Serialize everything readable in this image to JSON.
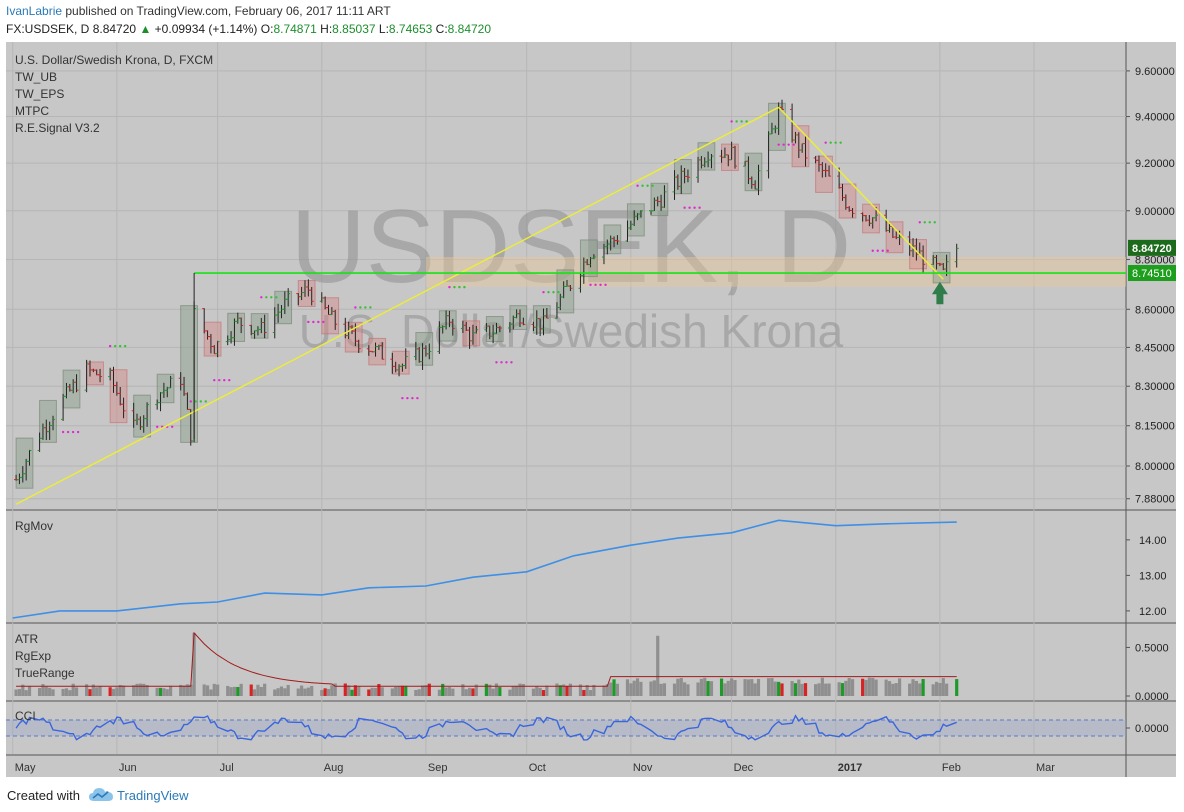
{
  "header": {
    "user": "IvanLabrie",
    "published": " published on TradingView.com, February 06, 2017 11:11 ART",
    "symbol": "FX:USDSEK, D",
    "last": "8.84720",
    "change": "+0.09934 (+1.14%)",
    "o_label": "O:",
    "o": "8.74871",
    "h_label": "H:",
    "h": "8.85037",
    "l_label": "L:",
    "l": "8.74653",
    "c_label": "C:",
    "c": "8.84720"
  },
  "legend": [
    "U.S. Dollar/Swedish Krona, D, FXCM",
    "TW_UB",
    "TW_EPS",
    "MTPC",
    "R.E.Signal V3.2"
  ],
  "watermark": {
    "line1": "USDSEK, D",
    "line2": "U.S. Dollar/Swedish Krona"
  },
  "footer": {
    "created": "Created with",
    "brand": "TradingView"
  },
  "colors": {
    "panel_bg": "#c7c7c7",
    "grid": "#b6b6b6",
    "up": "#1f9a2a",
    "down": "#d62424",
    "bar": "#222222",
    "trend": "#ecec3a",
    "support": "#16e316",
    "zone": "#e8c89a",
    "rgmov": "#3e8fe6",
    "cci": "#3a66dd",
    "atr": "#a31a1a",
    "dots_magenta": "#e02ad0",
    "dots_green": "#36c236",
    "last_badge": "#1c6b1c",
    "level_badge": "#1d9e1d",
    "arrow": "#2e7d4a"
  },
  "chart_data": [
    {
      "type": "candlestick",
      "title": "U.S. Dollar/Swedish Krona, D, FXCM",
      "ytick_labels": [
        "9.60000",
        "9.40000",
        "9.20000",
        "9.00000",
        "8.80000",
        "8.60000",
        "8.45000",
        "8.30000",
        "8.15000",
        "8.00000",
        "7.88000"
      ],
      "y_scale": "log",
      "ylim": [
        7.85,
        9.72
      ],
      "xtick_labels": [
        "May",
        "Jun",
        "Jul",
        "Aug",
        "Sep",
        "Oct",
        "Nov",
        "Dec",
        "2017",
        "Feb",
        "Mar"
      ],
      "last_price_label": "8.84720",
      "support_level": 8.7451,
      "support_label": "8.74510",
      "zone": [
        8.69,
        8.81
      ],
      "trendlines": [
        {
          "from": [
            "2016-05-02",
            7.86
          ],
          "to": [
            "2016-12-15",
            9.44
          ]
        },
        {
          "from": [
            "2016-12-15",
            9.44
          ],
          "to": [
            "2017-02-02",
            8.72
          ]
        }
      ],
      "close_path": [
        [
          "2016-05-02",
          7.95
        ],
        [
          "2016-05-09",
          8.12
        ],
        [
          "2016-05-16",
          8.25
        ],
        [
          "2016-05-23",
          8.36
        ],
        [
          "2016-05-30",
          8.33
        ],
        [
          "2016-06-06",
          8.14
        ],
        [
          "2016-06-13",
          8.27
        ],
        [
          "2016-06-20",
          8.33
        ],
        [
          "2016-06-23",
          8.12
        ],
        [
          "2016-06-24",
          8.58
        ],
        [
          "2016-06-30",
          8.45
        ],
        [
          "2016-07-07",
          8.55
        ],
        [
          "2016-07-14",
          8.52
        ],
        [
          "2016-07-21",
          8.62
        ],
        [
          "2016-07-28",
          8.68
        ],
        [
          "2016-08-04",
          8.56
        ],
        [
          "2016-08-11",
          8.48
        ],
        [
          "2016-08-18",
          8.43
        ],
        [
          "2016-08-25",
          8.38
        ],
        [
          "2016-09-01",
          8.44
        ],
        [
          "2016-09-08",
          8.56
        ],
        [
          "2016-09-15",
          8.49
        ],
        [
          "2016-09-22",
          8.52
        ],
        [
          "2016-09-29",
          8.58
        ],
        [
          "2016-10-06",
          8.54
        ],
        [
          "2016-10-13",
          8.68
        ],
        [
          "2016-10-20",
          8.83
        ],
        [
          "2016-10-27",
          8.88
        ],
        [
          "2016-11-03",
          8.97
        ],
        [
          "2016-11-10",
          9.05
        ],
        [
          "2016-11-17",
          9.15
        ],
        [
          "2016-11-24",
          9.25
        ],
        [
          "2016-12-01",
          9.24
        ],
        [
          "2016-12-08",
          9.12
        ],
        [
          "2016-12-15",
          9.42
        ],
        [
          "2016-12-22",
          9.25
        ],
        [
          "2016-12-29",
          9.15
        ],
        [
          "2017-01-05",
          9.02
        ],
        [
          "2017-01-12",
          8.97
        ],
        [
          "2017-01-19",
          8.88
        ],
        [
          "2017-01-26",
          8.82
        ],
        [
          "2017-02-02",
          8.74
        ],
        [
          "2017-02-06",
          8.8472
        ]
      ]
    },
    {
      "type": "line",
      "title": "RgMov",
      "ytick_labels": [
        "14.00",
        "13.00",
        "12.00"
      ],
      "ylim": [
        11.8,
        14.7
      ],
      "series": [
        {
          "values": [
            [
              "2016-05-01",
              11.85
            ],
            [
              "2016-05-15",
              11.95
            ],
            [
              "2016-06-01",
              12.05
            ],
            [
              "2016-06-20",
              12.15
            ],
            [
              "2016-07-01",
              12.3
            ],
            [
              "2016-07-15",
              12.45
            ],
            [
              "2016-08-01",
              12.5
            ],
            [
              "2016-08-15",
              12.6
            ],
            [
              "2016-09-01",
              12.75
            ],
            [
              "2016-09-15",
              12.9
            ],
            [
              "2016-10-01",
              13.15
            ],
            [
              "2016-10-15",
              13.5
            ],
            [
              "2016-11-01",
              13.9
            ],
            [
              "2016-11-15",
              14.0
            ],
            [
              "2016-12-01",
              14.25
            ],
            [
              "2016-12-15",
              14.5
            ],
            [
              "2017-01-01",
              14.45
            ],
            [
              "2017-01-15",
              14.4
            ],
            [
              "2017-02-06",
              14.55
            ]
          ]
        }
      ]
    },
    {
      "type": "bar",
      "title": "ATR / RgExp / TrueRange",
      "series_labels": [
        "ATR",
        "RgExp",
        "TrueRange"
      ],
      "ytick_labels": [
        "0.5000",
        "0.0000"
      ],
      "ylim": [
        0,
        0.7
      ]
    },
    {
      "type": "line",
      "title": "CCI",
      "ytick_labels": [
        "0.0000"
      ],
      "band": [
        -100,
        100
      ]
    }
  ]
}
